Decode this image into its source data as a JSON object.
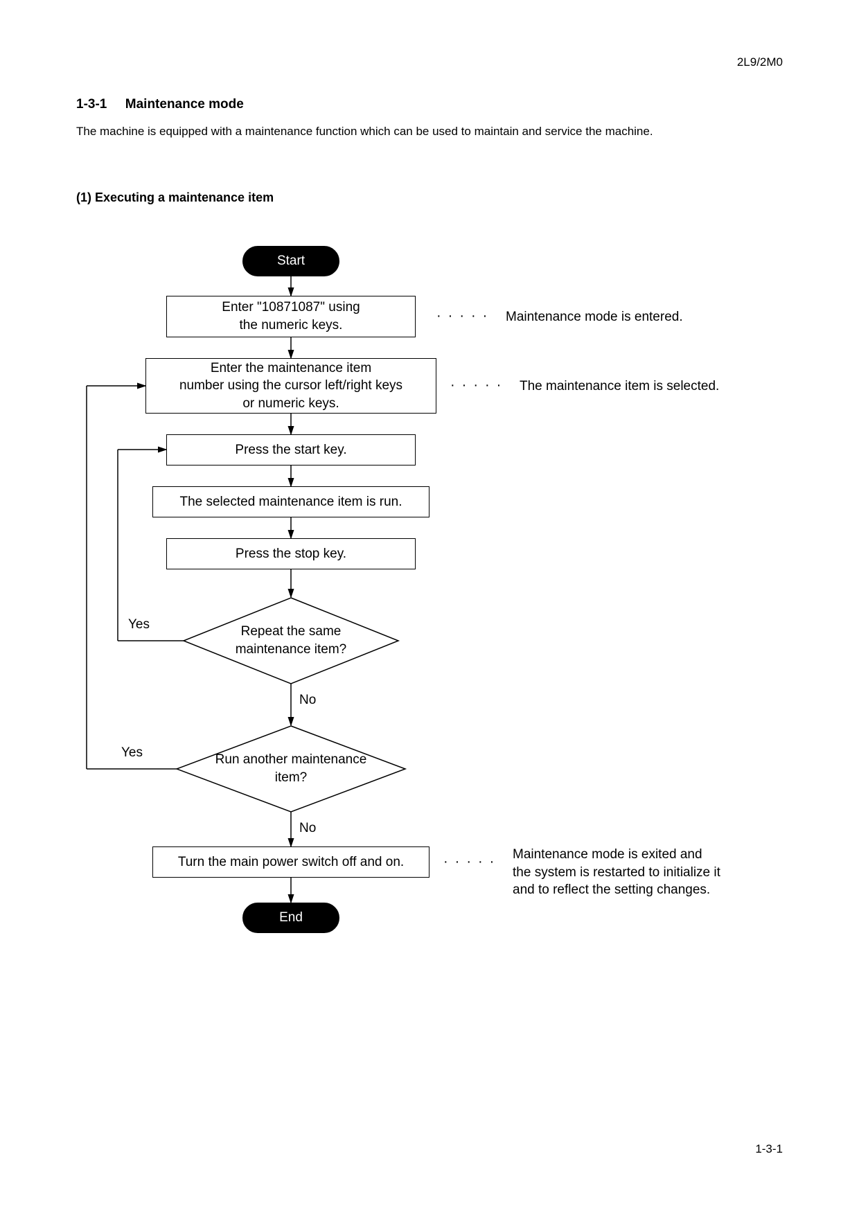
{
  "header": {
    "doc_code": "2L9/2M0",
    "section_number": "1-3-1",
    "section_title": "Maintenance mode",
    "section_desc": "The machine is equipped with a maintenance function which can be used to maintain and service the machine.",
    "subsection": "(1) Executing a maintenance item"
  },
  "flow": {
    "start": "Start",
    "step1": "Enter \"10871087\" using\nthe numeric keys.",
    "step2": "Enter the maintenance item\nnumber using the cursor left/right keys\nor numeric keys.",
    "step3": "Press the start key.",
    "step4": "The selected maintenance item is run.",
    "step5": "Press the stop key.",
    "dec1": "Repeat the same\nmaintenance item?",
    "dec2": "Run another maintenance\nitem?",
    "step6": "Turn the main power switch off and on.",
    "end": "End",
    "yes": "Yes",
    "no": "No"
  },
  "annotations": {
    "a1": "Maintenance mode is entered.",
    "a2": "The maintenance item is selected.",
    "a3": "Maintenance mode is exited and\nthe system is restarted to initialize it\nand to reflect the setting changes."
  },
  "footer": {
    "page_num": "1-3-1"
  },
  "style": {
    "line_color": "#000000",
    "line_width": 1.5,
    "bg": "#ffffff",
    "terminator_fill": "#000000",
    "terminator_text": "#ffffff",
    "font_size_body": 19,
    "font_size_header": 17
  }
}
